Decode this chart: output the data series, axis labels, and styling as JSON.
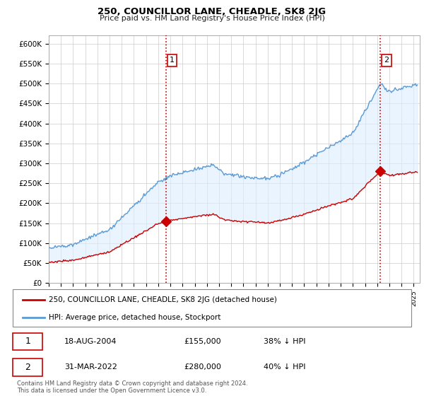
{
  "title": "250, COUNCILLOR LANE, CHEADLE, SK8 2JG",
  "subtitle": "Price paid vs. HM Land Registry's House Price Index (HPI)",
  "ylim": [
    0,
    620000
  ],
  "yticks": [
    0,
    50000,
    100000,
    150000,
    200000,
    250000,
    300000,
    350000,
    400000,
    450000,
    500000,
    550000,
    600000
  ],
  "hpi_color": "#5b9bd5",
  "price_color": "#cc0000",
  "fill_color": "#ddeeff",
  "fill_alpha": 0.6,
  "marker1_year": 2004.63,
  "marker1_price": 155000,
  "marker2_year": 2022.25,
  "marker2_price": 280000,
  "vline_color": "#cc0000",
  "legend_label1": "250, COUNCILLOR LANE, CHEADLE, SK8 2JG (detached house)",
  "legend_label2": "HPI: Average price, detached house, Stockport",
  "table_row1_num": "1",
  "table_row1_date": "18-AUG-2004",
  "table_row1_price": "£155,000",
  "table_row1_hpi": "38% ↓ HPI",
  "table_row2_num": "2",
  "table_row2_date": "31-MAR-2022",
  "table_row2_price": "£280,000",
  "table_row2_hpi": "40% ↓ HPI",
  "footer": "Contains HM Land Registry data © Crown copyright and database right 2024.\nThis data is licensed under the Open Government Licence v3.0.",
  "bg_color": "#ffffff",
  "grid_color": "#cccccc"
}
